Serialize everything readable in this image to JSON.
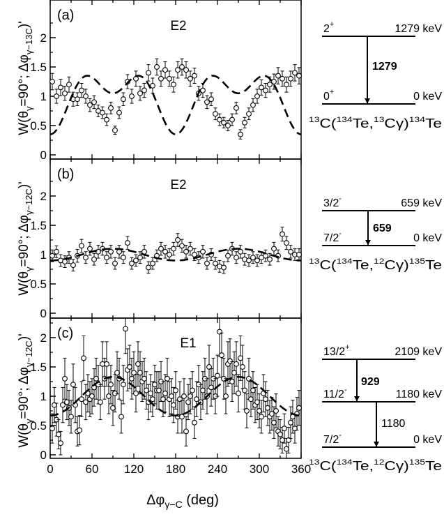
{
  "x_axis": {
    "label_main": "Δφ",
    "label_sub": "γ−C",
    "label_unit": " (deg)",
    "ticks": [
      "0",
      "60",
      "120",
      "180",
      "240",
      "300",
      "360"
    ],
    "range": [
      0,
      360
    ]
  },
  "y_axis_ticks": [
    "0",
    "0.5",
    "1",
    "1.5",
    "2"
  ],
  "chart_data": [
    {
      "type": "scatter",
      "panel_label": "(a)",
      "multipolarity": "E2",
      "ylabel": {
        "prefix": "W(θ",
        "sub1": "γ",
        "mid": "=90°; Δφ",
        "sub2": "γ−13C",
        "suffix": ")'"
      },
      "ylim": [
        0,
        2.5
      ],
      "fit_curve": {
        "style": "dashed",
        "form": "1 + a2 cos(2Δφ) + a4 cos(4Δφ)",
        "a2": -0.35,
        "a4": -0.3
      },
      "points": [
        [
          3,
          1.25,
          0.14
        ],
        [
          9,
          1.0,
          0.12
        ],
        [
          15,
          1.15,
          0.14
        ],
        [
          21,
          1.05,
          0.12
        ],
        [
          27,
          1.2,
          0.13
        ],
        [
          33,
          0.95,
          0.12
        ],
        [
          39,
          0.95,
          0.11
        ],
        [
          45,
          1.1,
          0.12
        ],
        [
          51,
          1.0,
          0.12
        ],
        [
          57,
          0.85,
          0.11
        ],
        [
          63,
          0.9,
          0.11
        ],
        [
          69,
          0.75,
          0.1
        ],
        [
          75,
          0.72,
          0.1
        ],
        [
          81,
          0.6,
          0.1
        ],
        [
          87,
          0.8,
          0.1
        ],
        [
          93,
          0.42,
          0.07
        ],
        [
          99,
          0.72,
          0.1
        ],
        [
          105,
          0.95,
          0.11
        ],
        [
          111,
          1.25,
          0.12
        ],
        [
          117,
          1.0,
          0.12
        ],
        [
          123,
          1.3,
          0.13
        ],
        [
          129,
          1.05,
          0.12
        ],
        [
          135,
          1.1,
          0.12
        ],
        [
          141,
          1.4,
          0.14
        ],
        [
          147,
          1.18,
          0.13
        ],
        [
          153,
          1.5,
          0.14
        ],
        [
          159,
          1.3,
          0.13
        ],
        [
          165,
          1.45,
          0.14
        ],
        [
          171,
          1.3,
          0.13
        ],
        [
          177,
          1.2,
          0.13
        ],
        [
          183,
          1.45,
          0.14
        ],
        [
          189,
          1.5,
          0.14
        ],
        [
          195,
          1.45,
          0.14
        ],
        [
          201,
          1.3,
          0.13
        ],
        [
          207,
          1.35,
          0.13
        ],
        [
          213,
          1.05,
          0.12
        ],
        [
          219,
          1.1,
          0.12
        ],
        [
          225,
          0.9,
          0.11
        ],
        [
          231,
          0.95,
          0.11
        ],
        [
          237,
          0.7,
          0.1
        ],
        [
          243,
          0.6,
          0.1
        ],
        [
          249,
          0.55,
          0.09
        ],
        [
          255,
          0.5,
          0.09
        ],
        [
          261,
          0.6,
          0.1
        ],
        [
          267,
          0.8,
          0.1
        ],
        [
          273,
          0.35,
          0.08
        ],
        [
          279,
          0.55,
          0.09
        ],
        [
          285,
          0.7,
          0.1
        ],
        [
          291,
          0.85,
          0.11
        ],
        [
          297,
          1.0,
          0.12
        ],
        [
          303,
          1.15,
          0.13
        ],
        [
          309,
          1.1,
          0.12
        ],
        [
          315,
          1.2,
          0.13
        ],
        [
          321,
          1.25,
          0.13
        ],
        [
          327,
          1.35,
          0.14
        ],
        [
          333,
          1.3,
          0.13
        ],
        [
          339,
          1.2,
          0.13
        ],
        [
          345,
          1.3,
          0.13
        ],
        [
          351,
          1.4,
          0.14
        ],
        [
          357,
          1.35,
          0.14
        ]
      ],
      "level_scheme": {
        "levels": [
          {
            "spin": "2",
            "parity": "+",
            "energy": "1279 keV"
          },
          {
            "spin": "0",
            "parity": "+",
            "energy": "0 keV"
          }
        ],
        "transitions": [
          {
            "label": "1279",
            "bold": true
          }
        ],
        "reaction": {
          "t1": "13",
          "t2": "C(",
          "t3": "134",
          "t4": "Te,",
          "t5": "13",
          "t6": "Cγ)",
          "t7": "134",
          "t8": "Te"
        }
      }
    },
    {
      "type": "scatter",
      "panel_label": "(b)",
      "multipolarity": "E2",
      "ylabel": {
        "prefix": "W(θ",
        "sub1": "γ",
        "mid": "=90°; Δφ",
        "sub2": "γ−12C",
        "suffix": ")'"
      },
      "ylim": [
        0,
        2.5
      ],
      "fit_curve": {
        "style": "dashed",
        "form": "1 + a2 cos(2Δφ) + a4 cos(4Δφ)",
        "a2": -0.1,
        "a4": 0.0
      },
      "points": [
        [
          3,
          0.98,
          0.1
        ],
        [
          9,
          1.05,
          0.1
        ],
        [
          15,
          0.9,
          0.1
        ],
        [
          21,
          0.88,
          0.1
        ],
        [
          27,
          0.95,
          0.1
        ],
        [
          33,
          0.82,
          0.1
        ],
        [
          39,
          0.98,
          0.11
        ],
        [
          45,
          1.15,
          0.11
        ],
        [
          51,
          0.95,
          0.1
        ],
        [
          57,
          1.1,
          0.11
        ],
        [
          63,
          0.92,
          0.1
        ],
        [
          69,
          1.05,
          0.11
        ],
        [
          75,
          1.1,
          0.11
        ],
        [
          81,
          0.95,
          0.1
        ],
        [
          87,
          1.05,
          0.11
        ],
        [
          93,
          0.85,
          0.1
        ],
        [
          99,
          1.05,
          0.11
        ],
        [
          105,
          0.95,
          0.1
        ],
        [
          111,
          1.2,
          0.11
        ],
        [
          117,
          0.85,
          0.1
        ],
        [
          123,
          0.9,
          0.1
        ],
        [
          129,
          0.95,
          0.1
        ],
        [
          135,
          1.05,
          0.11
        ],
        [
          141,
          0.78,
          0.1
        ],
        [
          147,
          0.85,
          0.1
        ],
        [
          153,
          0.98,
          0.1
        ],
        [
          159,
          1.1,
          0.11
        ],
        [
          165,
          1.05,
          0.11
        ],
        [
          171,
          1.0,
          0.1
        ],
        [
          177,
          1.1,
          0.11
        ],
        [
          183,
          1.25,
          0.11
        ],
        [
          189,
          1.15,
          0.11
        ],
        [
          195,
          1.05,
          0.11
        ],
        [
          201,
          1.1,
          0.11
        ],
        [
          207,
          1.0,
          0.1
        ],
        [
          213,
          0.95,
          0.1
        ],
        [
          219,
          1.05,
          0.11
        ],
        [
          225,
          0.85,
          0.1
        ],
        [
          231,
          1.0,
          0.1
        ],
        [
          237,
          0.85,
          0.1
        ],
        [
          243,
          0.8,
          0.1
        ],
        [
          249,
          0.78,
          0.1
        ],
        [
          255,
          0.98,
          0.1
        ],
        [
          261,
          1.1,
          0.11
        ],
        [
          267,
          0.95,
          0.1
        ],
        [
          273,
          1.05,
          0.11
        ],
        [
          279,
          0.92,
          0.1
        ],
        [
          285,
          0.9,
          0.1
        ],
        [
          291,
          0.95,
          0.1
        ],
        [
          297,
          0.9,
          0.1
        ],
        [
          303,
          0.95,
          0.1
        ],
        [
          309,
          0.98,
          0.1
        ],
        [
          315,
          0.92,
          0.1
        ],
        [
          321,
          1.1,
          0.11
        ],
        [
          327,
          0.98,
          0.1
        ],
        [
          333,
          1.35,
          0.12
        ],
        [
          339,
          1.2,
          0.11
        ],
        [
          345,
          1.05,
          0.11
        ],
        [
          351,
          1.0,
          0.1
        ],
        [
          357,
          1.0,
          0.1
        ]
      ],
      "level_scheme": {
        "levels": [
          {
            "spin": "3/2",
            "parity": "-",
            "energy": "659 keV"
          },
          {
            "spin": "7/2",
            "parity": "-",
            "energy": "0 keV"
          }
        ],
        "transitions": [
          {
            "label": "659",
            "bold": true
          }
        ],
        "reaction": {
          "t1": "13",
          "t2": "C(",
          "t3": "134",
          "t4": "Te,",
          "t5": "12",
          "t6": "Cγ)",
          "t7": "135",
          "t8": "Te"
        }
      }
    },
    {
      "type": "scatter",
      "panel_label": "(c)",
      "multipolarity": "E1",
      "ylabel": {
        "prefix": "W(θ",
        "sub1": "γ",
        "mid": "=90°; Δφ",
        "sub2": "γ−12C",
        "suffix": ")'"
      },
      "ylim": [
        0,
        2.5
      ],
      "fit_curve": {
        "style": "dashed",
        "form": "1 + a2 cos(2Δφ) + a4 cos(4Δφ)",
        "a2": -0.33,
        "a4": 0.0
      },
      "points": [
        [
          3,
          0.45,
          0.25
        ],
        [
          6,
          0.85,
          0.3
        ],
        [
          9,
          0.6,
          0.28
        ],
        [
          12,
          0.35,
          0.25
        ],
        [
          15,
          0.2,
          0.2
        ],
        [
          18,
          0.85,
          0.3
        ],
        [
          21,
          1.3,
          0.35
        ],
        [
          24,
          0.9,
          0.3
        ],
        [
          27,
          0.8,
          0.3
        ],
        [
          30,
          0.65,
          0.28
        ],
        [
          33,
          1.2,
          0.35
        ],
        [
          36,
          0.85,
          0.3
        ],
        [
          39,
          0.4,
          0.25
        ],
        [
          42,
          0.42,
          0.25
        ],
        [
          45,
          0.95,
          0.3
        ],
        [
          48,
          1.65,
          0.38
        ],
        [
          51,
          0.9,
          0.3
        ],
        [
          54,
          1.05,
          0.32
        ],
        [
          57,
          0.95,
          0.3
        ],
        [
          60,
          1.0,
          0.3
        ],
        [
          63,
          1.15,
          0.32
        ],
        [
          66,
          1.3,
          0.35
        ],
        [
          69,
          1.2,
          0.33
        ],
        [
          72,
          0.9,
          0.3
        ],
        [
          75,
          1.55,
          0.38
        ],
        [
          78,
          1.3,
          0.35
        ],
        [
          81,
          1.55,
          0.38
        ],
        [
          84,
          1.0,
          0.3
        ],
        [
          87,
          1.2,
          0.33
        ],
        [
          90,
          0.8,
          0.3
        ],
        [
          93,
          1.05,
          0.32
        ],
        [
          96,
          1.4,
          0.36
        ],
        [
          99,
          1.3,
          0.35
        ],
        [
          102,
          0.65,
          0.28
        ],
        [
          105,
          1.2,
          0.33
        ],
        [
          108,
          2.15,
          0.42
        ],
        [
          111,
          1.45,
          0.36
        ],
        [
          114,
          1.5,
          0.37
        ],
        [
          117,
          1.3,
          0.35
        ],
        [
          120,
          1.4,
          0.36
        ],
        [
          123,
          1.05,
          0.32
        ],
        [
          126,
          1.55,
          0.38
        ],
        [
          129,
          1.4,
          0.36
        ],
        [
          132,
          1.25,
          0.34
        ],
        [
          135,
          1.3,
          0.35
        ],
        [
          138,
          1.1,
          0.32
        ],
        [
          141,
          0.9,
          0.3
        ],
        [
          144,
          1.05,
          0.32
        ],
        [
          147,
          0.95,
          0.3
        ],
        [
          150,
          1.2,
          0.33
        ],
        [
          153,
          1.1,
          0.32
        ],
        [
          156,
          1.1,
          0.32
        ],
        [
          159,
          1.25,
          0.34
        ],
        [
          162,
          0.95,
          0.3
        ],
        [
          165,
          1.05,
          0.32
        ],
        [
          168,
          1.3,
          0.35
        ],
        [
          171,
          0.95,
          0.3
        ],
        [
          174,
          1.0,
          0.3
        ],
        [
          177,
          0.85,
          0.3
        ],
        [
          180,
          1.1,
          0.32
        ],
        [
          183,
          0.65,
          0.28
        ],
        [
          186,
          0.95,
          0.3
        ],
        [
          189,
          0.65,
          0.28
        ],
        [
          192,
          1.0,
          0.3
        ],
        [
          195,
          0.4,
          0.25
        ],
        [
          198,
          0.9,
          0.3
        ],
        [
          201,
          1.0,
          0.3
        ],
        [
          204,
          1.1,
          0.32
        ],
        [
          207,
          0.55,
          0.27
        ],
        [
          210,
          0.95,
          0.3
        ],
        [
          213,
          1.2,
          0.33
        ],
        [
          216,
          0.9,
          0.3
        ],
        [
          219,
          1.1,
          0.32
        ],
        [
          222,
          1.3,
          0.35
        ],
        [
          225,
          1.0,
          0.3
        ],
        [
          228,
          1.5,
          0.37
        ],
        [
          231,
          1.15,
          0.32
        ],
        [
          234,
          1.3,
          0.35
        ],
        [
          237,
          1.0,
          0.3
        ],
        [
          240,
          1.35,
          0.35
        ],
        [
          243,
          2.1,
          0.42
        ],
        [
          246,
          1.7,
          0.38
        ],
        [
          249,
          1.3,
          0.35
        ],
        [
          252,
          1.0,
          0.3
        ],
        [
          255,
          1.55,
          0.38
        ],
        [
          258,
          1.6,
          0.38
        ],
        [
          261,
          1.25,
          0.34
        ],
        [
          264,
          1.4,
          0.36
        ],
        [
          267,
          1.55,
          0.38
        ],
        [
          270,
          1.05,
          0.32
        ],
        [
          273,
          1.65,
          0.38
        ],
        [
          276,
          1.5,
          0.37
        ],
        [
          279,
          1.1,
          0.32
        ],
        [
          282,
          0.75,
          0.29
        ],
        [
          285,
          1.3,
          0.35
        ],
        [
          288,
          0.95,
          0.3
        ],
        [
          291,
          1.1,
          0.32
        ],
        [
          294,
          0.85,
          0.3
        ],
        [
          297,
          0.9,
          0.3
        ],
        [
          300,
          0.75,
          0.29
        ],
        [
          303,
          0.65,
          0.28
        ],
        [
          306,
          1.05,
          0.32
        ],
        [
          309,
          0.95,
          0.3
        ],
        [
          312,
          0.8,
          0.3
        ],
        [
          315,
          0.65,
          0.28
        ],
        [
          318,
          0.7,
          0.28
        ],
        [
          321,
          0.55,
          0.27
        ],
        [
          324,
          0.75,
          0.29
        ],
        [
          327,
          0.4,
          0.25
        ],
        [
          330,
          0.35,
          0.25
        ],
        [
          333,
          0.25,
          0.22
        ],
        [
          336,
          0.45,
          0.25
        ],
        [
          339,
          0.1,
          0.18
        ],
        [
          342,
          0.25,
          0.22
        ],
        [
          345,
          0.55,
          0.27
        ],
        [
          348,
          0.65,
          0.28
        ],
        [
          351,
          0.45,
          0.25
        ],
        [
          354,
          0.7,
          0.28
        ],
        [
          357,
          0.8,
          0.3
        ]
      ],
      "level_scheme": {
        "levels": [
          {
            "spin": "13/2",
            "parity": "+",
            "energy": "2109 keV"
          },
          {
            "spin": "11/2",
            "parity": "-",
            "energy": "1180 keV"
          },
          {
            "spin": "7/2",
            "parity": "-",
            "energy": "0 keV"
          }
        ],
        "transitions": [
          {
            "label": "929",
            "bold": true
          },
          {
            "label": "1180",
            "bold": false
          }
        ],
        "reaction": {
          "t1": "13",
          "t2": "C(",
          "t3": "134",
          "t4": "Te,",
          "t5": "12",
          "t6": "Cγ)",
          "t7": "135",
          "t8": "Te"
        }
      }
    }
  ]
}
